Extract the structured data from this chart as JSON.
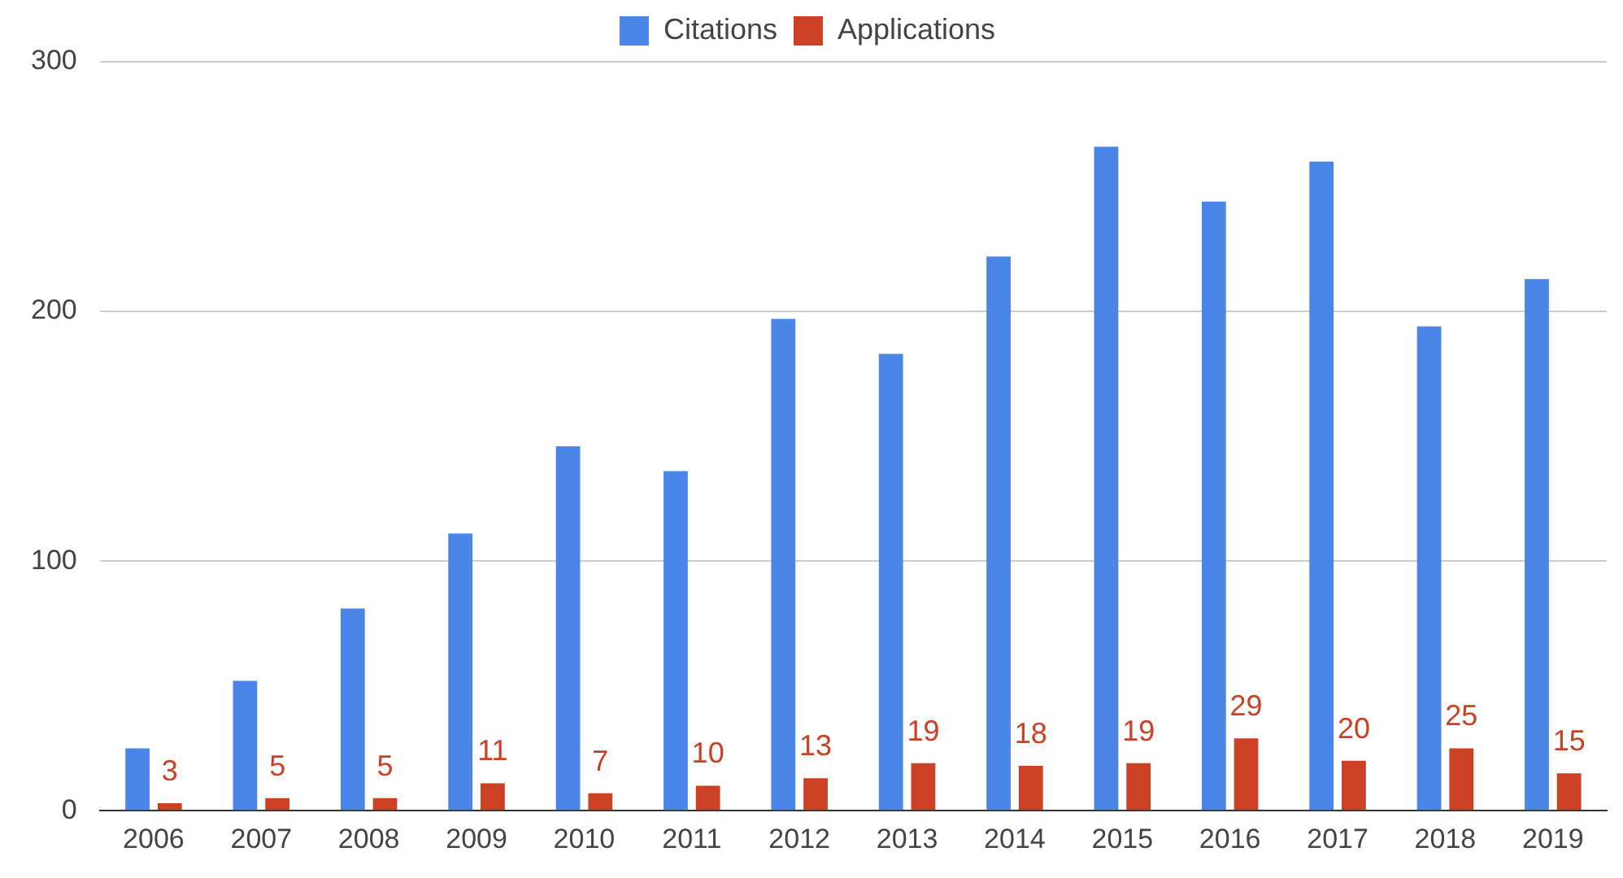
{
  "chart_data": {
    "type": "bar",
    "categories": [
      "2006",
      "2007",
      "2008",
      "2009",
      "2010",
      "2011",
      "2012",
      "2013",
      "2014",
      "2015",
      "2016",
      "2017",
      "2018",
      "2019"
    ],
    "series": [
      {
        "name": "Citations",
        "color": "#4a86e8",
        "values": [
          25,
          52,
          81,
          111,
          146,
          136,
          197,
          183,
          222,
          266,
          244,
          260,
          194,
          213
        ]
      },
      {
        "name": "Applications",
        "color": "#cc4125",
        "values": [
          3,
          5,
          5,
          11,
          7,
          10,
          13,
          19,
          18,
          19,
          29,
          20,
          25,
          15
        ],
        "value_labels": [
          "3",
          "5",
          "5",
          "11",
          "7",
          "10",
          "13",
          "19",
          "18",
          "19",
          "29",
          "20",
          "25",
          "15"
        ]
      }
    ],
    "ylim": [
      0,
      300
    ],
    "yticks": [
      0,
      100,
      200,
      300
    ],
    "grid": "y",
    "legend": "top"
  }
}
